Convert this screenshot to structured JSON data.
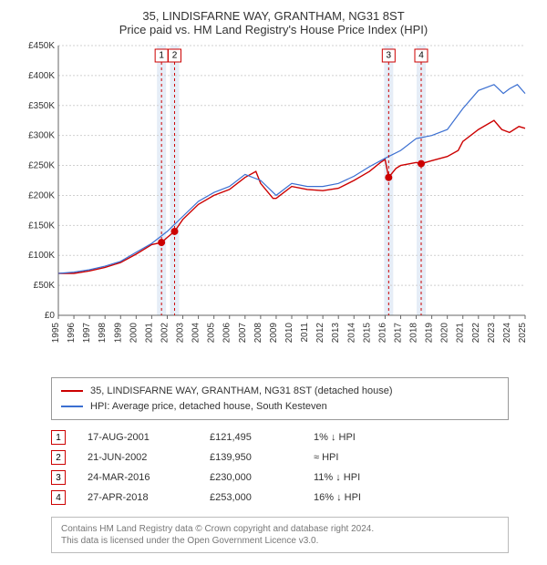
{
  "title_line1": "35, LINDISFARNE WAY, GRANTHAM, NG31 8ST",
  "title_line2": "Price paid vs. HM Land Registry's House Price Index (HPI)",
  "chart": {
    "type": "line",
    "background_color": "#ffffff",
    "grid_color": "#d0d0d0",
    "axis_color": "#666666",
    "x": {
      "min": 1995,
      "max": 2025,
      "tick_step": 1,
      "labels": [
        "1995",
        "1996",
        "1997",
        "1998",
        "1999",
        "2000",
        "2001",
        "2002",
        "2003",
        "2004",
        "2005",
        "2006",
        "2007",
        "2008",
        "2009",
        "2010",
        "2011",
        "2012",
        "2013",
        "2014",
        "2015",
        "2016",
        "2017",
        "2018",
        "2019",
        "2020",
        "2021",
        "2022",
        "2023",
        "2024",
        "2025"
      ]
    },
    "y": {
      "min": 0,
      "max": 450000,
      "tick_step": 50000,
      "labels": [
        "£0",
        "£50K",
        "£100K",
        "£150K",
        "£200K",
        "£250K",
        "£300K",
        "£350K",
        "£400K",
        "£450K"
      ]
    },
    "series": [
      {
        "name": "35, LINDISFARNE WAY, GRANTHAM, NG31 8ST (detached house)",
        "key": "property",
        "color": "#cc0000",
        "line_width": 1.4,
        "data": [
          [
            1995,
            70000
          ],
          [
            1996,
            70000
          ],
          [
            1997,
            74000
          ],
          [
            1998,
            80000
          ],
          [
            1999,
            88000
          ],
          [
            2000,
            102000
          ],
          [
            2001,
            118000
          ],
          [
            2001.63,
            121495
          ],
          [
            2002,
            130000
          ],
          [
            2002.47,
            139950
          ],
          [
            2003,
            160000
          ],
          [
            2004,
            185000
          ],
          [
            2005,
            200000
          ],
          [
            2006,
            210000
          ],
          [
            2007,
            230000
          ],
          [
            2007.7,
            240000
          ],
          [
            2008,
            220000
          ],
          [
            2008.8,
            195000
          ],
          [
            2009,
            195000
          ],
          [
            2010,
            215000
          ],
          [
            2011,
            210000
          ],
          [
            2012,
            208000
          ],
          [
            2013,
            212000
          ],
          [
            2014,
            225000
          ],
          [
            2015,
            240000
          ],
          [
            2015.7,
            255000
          ],
          [
            2016,
            260000
          ],
          [
            2016.23,
            230000
          ],
          [
            2016.7,
            245000
          ],
          [
            2017,
            250000
          ],
          [
            2018,
            255000
          ],
          [
            2018.32,
            253000
          ],
          [
            2019,
            258000
          ],
          [
            2020,
            265000
          ],
          [
            2020.7,
            275000
          ],
          [
            2021,
            290000
          ],
          [
            2022,
            310000
          ],
          [
            2023,
            325000
          ],
          [
            2023.5,
            310000
          ],
          [
            2024,
            305000
          ],
          [
            2024.6,
            315000
          ],
          [
            2025,
            312000
          ]
        ]
      },
      {
        "name": "HPI: Average price, detached house, South Kesteven",
        "key": "hpi",
        "color": "#3b6fd1",
        "line_width": 1.2,
        "data": [
          [
            1995,
            70000
          ],
          [
            1996,
            72000
          ],
          [
            1997,
            76000
          ],
          [
            1998,
            82000
          ],
          [
            1999,
            90000
          ],
          [
            2000,
            105000
          ],
          [
            2001,
            120000
          ],
          [
            2002,
            140000
          ],
          [
            2003,
            165000
          ],
          [
            2004,
            190000
          ],
          [
            2005,
            205000
          ],
          [
            2006,
            215000
          ],
          [
            2007,
            235000
          ],
          [
            2008,
            225000
          ],
          [
            2009,
            200000
          ],
          [
            2010,
            220000
          ],
          [
            2011,
            215000
          ],
          [
            2012,
            215000
          ],
          [
            2013,
            220000
          ],
          [
            2014,
            232000
          ],
          [
            2015,
            248000
          ],
          [
            2016,
            262000
          ],
          [
            2017,
            275000
          ],
          [
            2018,
            295000
          ],
          [
            2019,
            300000
          ],
          [
            2020,
            310000
          ],
          [
            2021,
            345000
          ],
          [
            2022,
            375000
          ],
          [
            2023,
            385000
          ],
          [
            2023.6,
            370000
          ],
          [
            2024,
            378000
          ],
          [
            2024.5,
            385000
          ],
          [
            2025,
            370000
          ]
        ]
      }
    ],
    "transactions": [
      {
        "n": "1",
        "date": "17-AUG-2001",
        "price": "£121,495",
        "diff": "1% ↓ HPI",
        "year": 2001.63,
        "value": 121495
      },
      {
        "n": "2",
        "date": "21-JUN-2002",
        "price": "£139,950",
        "diff": "≈ HPI",
        "year": 2002.47,
        "value": 139950
      },
      {
        "n": "3",
        "date": "24-MAR-2016",
        "price": "£230,000",
        "diff": "11% ↓ HPI",
        "year": 2016.23,
        "value": 230000
      },
      {
        "n": "4",
        "date": "27-APR-2018",
        "price": "£253,000",
        "diff": "16% ↓ HPI",
        "year": 2018.32,
        "value": 253000
      }
    ],
    "callout_box": {
      "stroke": "#cc0000",
      "fill": "#ffffff"
    },
    "vertical_band_color": "#dbe6f4"
  },
  "legend": {
    "items": [
      {
        "color": "#cc0000",
        "label": "35, LINDISFARNE WAY, GRANTHAM, NG31 8ST (detached house)"
      },
      {
        "color": "#3b6fd1",
        "label": "HPI: Average price, detached house, South Kesteven"
      }
    ]
  },
  "footer": {
    "line1": "Contains HM Land Registry data © Crown copyright and database right 2024.",
    "line2": "This data is licensed under the Open Government Licence v3.0."
  }
}
